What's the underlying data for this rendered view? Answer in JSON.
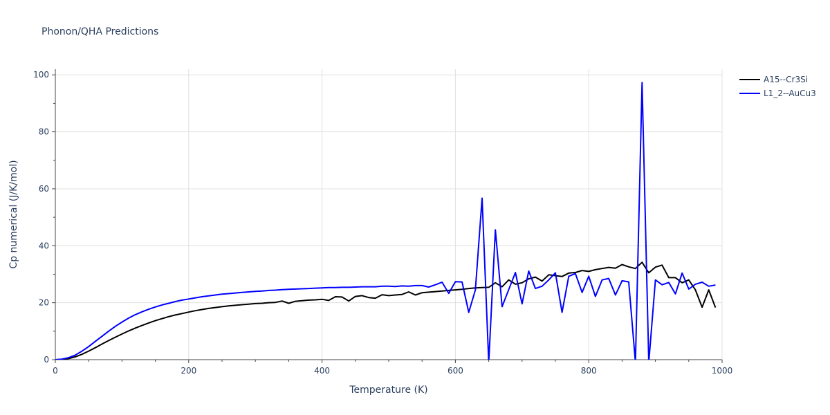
{
  "chart_data": {
    "type": "line",
    "title": "Phonon/QHA Predictions",
    "xlabel": "Temperature (K)",
    "ylabel": "Cp numerical (J/K/mol)",
    "xlim": [
      0,
      1000
    ],
    "ylim": [
      0,
      102
    ],
    "xticks": [
      0,
      200,
      400,
      600,
      800,
      1000
    ],
    "yticks": [
      0,
      20,
      40,
      60,
      80,
      100
    ],
    "grid": true,
    "legend_position": "top-right",
    "series": [
      {
        "name": "A15--Cr3Si",
        "color": "#000000",
        "x": [
          0,
          10,
          20,
          30,
          40,
          50,
          60,
          70,
          80,
          90,
          100,
          110,
          120,
          130,
          140,
          150,
          160,
          170,
          180,
          190,
          200,
          210,
          220,
          230,
          240,
          250,
          260,
          270,
          280,
          290,
          300,
          310,
          320,
          330,
          340,
          350,
          360,
          370,
          380,
          390,
          400,
          410,
          420,
          430,
          440,
          450,
          460,
          470,
          480,
          490,
          500,
          510,
          520,
          530,
          540,
          550,
          560,
          570,
          580,
          590,
          600,
          610,
          620,
          630,
          640,
          650,
          660,
          670,
          680,
          690,
          700,
          710,
          720,
          730,
          740,
          750,
          760,
          770,
          780,
          790,
          800,
          810,
          820,
          830,
          840,
          850,
          860,
          870,
          880,
          890,
          900,
          910,
          920,
          930,
          940,
          950,
          960,
          970,
          980,
          990
        ],
        "y": [
          0,
          0.1,
          0.4,
          1.0,
          1.9,
          3.0,
          4.2,
          5.5,
          6.7,
          7.9,
          9.0,
          10.1,
          11.1,
          12.0,
          12.9,
          13.7,
          14.4,
          15.1,
          15.7,
          16.2,
          16.7,
          17.2,
          17.6,
          18.0,
          18.3,
          18.6,
          18.9,
          19.1,
          19.3,
          19.5,
          19.7,
          19.8,
          20.0,
          20.1,
          20.6,
          19.8,
          20.5,
          20.7,
          20.9,
          21.0,
          21.2,
          20.8,
          22.1,
          22.0,
          20.6,
          22.2,
          22.5,
          21.8,
          21.6,
          22.8,
          22.5,
          22.7,
          22.9,
          23.8,
          22.7,
          23.5,
          23.7,
          23.9,
          24.1,
          24.3,
          24.5,
          24.7,
          25.0,
          25.2,
          25.3,
          25.4,
          27.0,
          25.6,
          28.0,
          26.5,
          27.0,
          28.4,
          29.0,
          27.6,
          29.8,
          29.5,
          29.2,
          30.4,
          30.6,
          31.3,
          31.0,
          31.6,
          32.0,
          32.4,
          32.1,
          33.4,
          32.6,
          32.0,
          34.2,
          30.5,
          32.5,
          33.2,
          28.8,
          28.8,
          27.0,
          28.0,
          24.5,
          18.4,
          24.5,
          18.3
        ]
      },
      {
        "name": "L1_2--AuCu3",
        "color": "#0000ff",
        "x": [
          0,
          10,
          20,
          30,
          40,
          50,
          60,
          70,
          80,
          90,
          100,
          110,
          120,
          130,
          140,
          150,
          160,
          170,
          180,
          190,
          200,
          210,
          220,
          230,
          240,
          250,
          260,
          270,
          280,
          290,
          300,
          310,
          320,
          330,
          340,
          350,
          360,
          370,
          380,
          390,
          400,
          410,
          420,
          430,
          440,
          450,
          460,
          470,
          480,
          490,
          500,
          510,
          520,
          530,
          540,
          550,
          560,
          570,
          580,
          590,
          600,
          610,
          620,
          630,
          640,
          650,
          660,
          670,
          680,
          690,
          700,
          710,
          720,
          730,
          740,
          750,
          760,
          770,
          780,
          790,
          800,
          810,
          820,
          830,
          840,
          850,
          860,
          870,
          880,
          890,
          900,
          910,
          920,
          930,
          940,
          950,
          960,
          970,
          980,
          990
        ],
        "y": [
          0,
          0.2,
          0.7,
          1.6,
          3.0,
          4.6,
          6.4,
          8.2,
          10.0,
          11.7,
          13.2,
          14.6,
          15.8,
          16.8,
          17.7,
          18.5,
          19.2,
          19.8,
          20.4,
          20.9,
          21.3,
          21.7,
          22.1,
          22.4,
          22.7,
          23.0,
          23.2,
          23.4,
          23.6,
          23.8,
          24.0,
          24.1,
          24.3,
          24.4,
          24.6,
          24.7,
          24.8,
          24.9,
          25.0,
          25.1,
          25.2,
          25.3,
          25.3,
          25.4,
          25.4,
          25.5,
          25.6,
          25.6,
          25.6,
          25.8,
          25.8,
          25.7,
          25.9,
          25.8,
          26.0,
          26.0,
          25.5,
          26.3,
          27.2,
          23.3,
          27.4,
          27.3,
          16.6,
          24.5,
          56.7,
          -1.0,
          45.6,
          18.6,
          24.6,
          30.6,
          19.6,
          31.1,
          25.0,
          25.8,
          28.0,
          30.5,
          16.6,
          29.3,
          30.2,
          23.6,
          29.3,
          22.2,
          28.0,
          28.5,
          22.7,
          27.7,
          27.3,
          -1.0,
          97.3,
          -1.0,
          28.0,
          26.3,
          27.1,
          23.1,
          30.4,
          24.8,
          26.5,
          27.2,
          25.8,
          26.2
        ]
      }
    ]
  }
}
